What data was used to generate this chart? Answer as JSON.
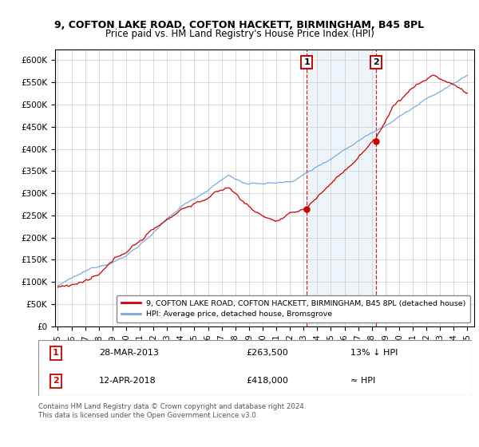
{
  "title": "9, COFTON LAKE ROAD, COFTON HACKETT, BIRMINGHAM, B45 8PL",
  "subtitle": "Price paid vs. HM Land Registry's House Price Index (HPI)",
  "ylabel_ticks": [
    "£0",
    "£50K",
    "£100K",
    "£150K",
    "£200K",
    "£250K",
    "£300K",
    "£350K",
    "£400K",
    "£450K",
    "£500K",
    "£550K",
    "£600K"
  ],
  "ytick_vals": [
    0,
    50000,
    100000,
    150000,
    200000,
    250000,
    300000,
    350000,
    400000,
    450000,
    500000,
    550000,
    600000
  ],
  "ylim": [
    0,
    625000
  ],
  "xlim_start": 1994.8,
  "xlim_end": 2025.5,
  "hpi_color": "#7aaadd",
  "price_color": "#cc0000",
  "highlight_color": "#d8eaf8",
  "dashed_color": "#cc0000",
  "sale1_x": 2013.24,
  "sale1_y": 263500,
  "sale2_x": 2018.28,
  "sale2_y": 418000,
  "legend_entry1": "9, COFTON LAKE ROAD, COFTON HACKETT, BIRMINGHAM, B45 8PL (detached house)",
  "legend_entry2": "HPI: Average price, detached house, Bromsgrove",
  "table_row1_date": "28-MAR-2013",
  "table_row1_price": "£263,500",
  "table_row1_hpi": "13% ↓ HPI",
  "table_row2_date": "12-APR-2018",
  "table_row2_price": "£418,000",
  "table_row2_hpi": "≈ HPI",
  "footer": "Contains HM Land Registry data © Crown copyright and database right 2024.\nThis data is licensed under the Open Government Licence v3.0.",
  "xtick_years": [
    1995,
    1996,
    1997,
    1998,
    1999,
    2000,
    2001,
    2002,
    2003,
    2004,
    2005,
    2006,
    2007,
    2008,
    2009,
    2010,
    2011,
    2012,
    2013,
    2014,
    2015,
    2016,
    2017,
    2018,
    2019,
    2020,
    2021,
    2022,
    2023,
    2024,
    2025
  ]
}
